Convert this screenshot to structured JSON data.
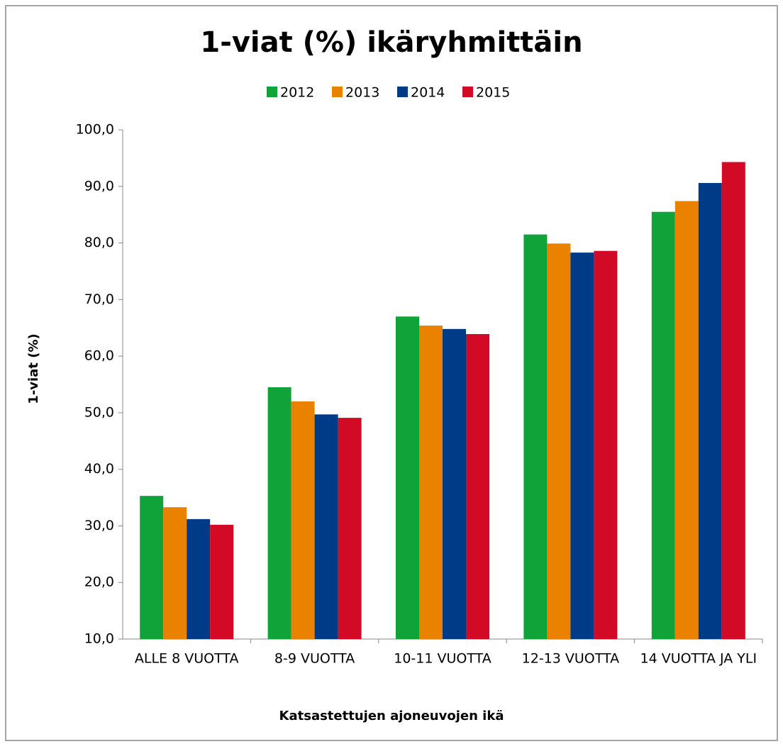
{
  "chart_data": {
    "type": "bar",
    "title": "1-viat (%) ikäryhmittäin",
    "x_label": "Katsastettujen ajoneuvojen ikä",
    "y_label": "1-viat (%)",
    "categories": [
      "ALLE 8 VUOTTA",
      "8-9 VUOTTA",
      "10-11 VUOTTA",
      "12-13 VUOTTA",
      "14 VUOTTA JA YLI"
    ],
    "series": [
      {
        "name": "2012",
        "color": "#10a33a",
        "values": [
          35.3,
          54.5,
          67.0,
          81.5,
          85.5
        ]
      },
      {
        "name": "2013",
        "color": "#ea8200",
        "values": [
          33.3,
          52.0,
          65.4,
          79.9,
          87.4
        ]
      },
      {
        "name": "2014",
        "color": "#003b87",
        "values": [
          31.2,
          49.7,
          64.8,
          78.3,
          90.6
        ]
      },
      {
        "name": "2015",
        "color": "#d20a26",
        "values": [
          30.2,
          49.1,
          63.9,
          78.6,
          94.3
        ]
      }
    ],
    "ylim": [
      10,
      100
    ],
    "yticks": [
      {
        "value": 10,
        "label": "10,0"
      },
      {
        "value": 20,
        "label": "20,0"
      },
      {
        "value": 30,
        "label": "30,0"
      },
      {
        "value": 40,
        "label": "40,0"
      },
      {
        "value": 50,
        "label": "50,0"
      },
      {
        "value": 60,
        "label": "60,0"
      },
      {
        "value": 70,
        "label": "70,0"
      },
      {
        "value": 80,
        "label": "80,0"
      },
      {
        "value": 90,
        "label": "90,0"
      },
      {
        "value": 100,
        "label": "100,0"
      }
    ],
    "legend": "top"
  }
}
